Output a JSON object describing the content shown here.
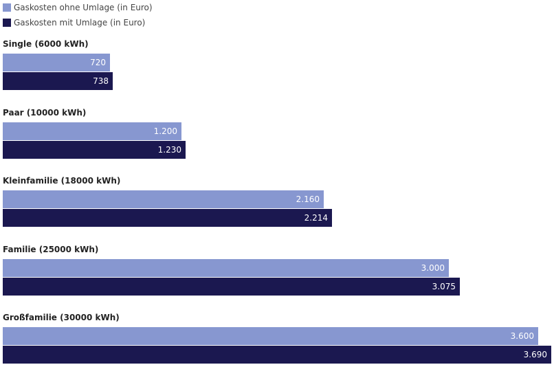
{
  "chart_data": {
    "type": "bar",
    "orientation": "horizontal",
    "legend_position": "top-left",
    "grid": false,
    "categories": [
      "Single (6000 kWh)",
      "Paar (10000 kWh)",
      "Kleinfamilie (18000 kWh)",
      "Familie (25000 kWh)",
      "Großfamilie (30000 kWh)"
    ],
    "series": [
      {
        "name": "Gaskosten ohne Umlage (in Euro)",
        "color": "#8797d0",
        "values": [
          720,
          1200,
          2160,
          3000,
          3600
        ],
        "value_labels": [
          "720",
          "1.200",
          "2.160",
          "3.000",
          "3.600"
        ]
      },
      {
        "name": "Gaskosten mit Umlage (in Euro)",
        "color": "#1b1850",
        "values": [
          738,
          1230,
          2214,
          3075,
          3690
        ],
        "value_labels": [
          "738",
          "1.230",
          "2.214",
          "3.075",
          "3.690"
        ]
      }
    ],
    "xlim": [
      0,
      3690
    ]
  }
}
